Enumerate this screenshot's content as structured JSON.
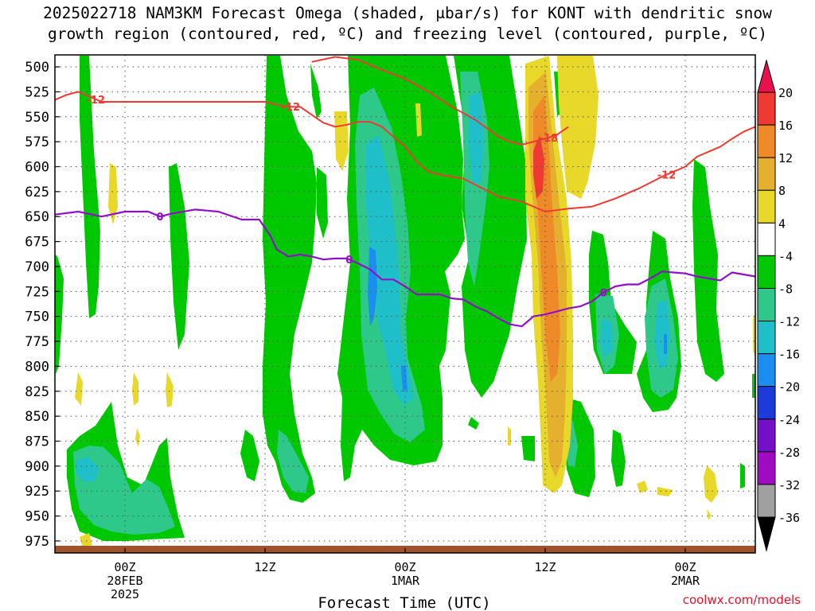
{
  "title_line1": "2025022718 NAM3KM Forecast Omega (shaded, μbar/s) for KONT with dendritic snow",
  "title_line2": "growth region (contoured, red, ºC) and freezing level (contoured, purple, ºC)",
  "credit": "coolwx.com/models",
  "chart_data": {
    "type": "heatmap",
    "title": "2025022718 NAM3KM Forecast Omega (shaded, μbar/s) for KONT with dendritic snow growth region (contoured, red, ºC) and freezing level (contoured, purple, ºC)",
    "xlabel": "Forecast Time (UTC)",
    "ylabel": "",
    "x_range_hours": [
      0,
      60
    ],
    "ylim": [
      987,
      488
    ],
    "y_ticks": [
      500,
      525,
      550,
      575,
      600,
      625,
      650,
      675,
      700,
      725,
      750,
      775,
      800,
      825,
      850,
      875,
      900,
      925,
      950,
      975
    ],
    "x_ticks": [
      {
        "hour": 6,
        "lines": [
          "00Z",
          "28FEB",
          "2025"
        ]
      },
      {
        "hour": 18,
        "lines": [
          "12Z"
        ]
      },
      {
        "hour": 30,
        "lines": [
          "00Z",
          "1MAR"
        ]
      },
      {
        "hour": 42,
        "lines": [
          "12Z"
        ]
      },
      {
        "hour": 54,
        "lines": [
          "00Z",
          "2MAR"
        ]
      }
    ],
    "grid": true,
    "colorbar": {
      "labels": [
        "20",
        "16",
        "12",
        "8",
        "4",
        "-4",
        "-8",
        "-12",
        "-16",
        "-20",
        "-24",
        "-28",
        "-32",
        "-36"
      ],
      "colors": [
        "#e8114e",
        "#ee3a32",
        "#ef8a28",
        "#e4b02e",
        "#e8d82a",
        "#ffffff",
        "#00c800",
        "#2ec98a",
        "#1fbfca",
        "#1a8ff0",
        "#1c3bd8",
        "#7410c8",
        "#a00ac0",
        "#a0a0a0",
        "#000000"
      ]
    },
    "contour_labels": {
      "dgz_red": [
        "-12",
        "-12",
        "-18",
        "-12"
      ],
      "freezing_purple": [
        "0",
        "0",
        "0"
      ]
    },
    "freezing_level": {
      "hours": [
        0,
        2,
        4,
        6,
        8,
        9,
        10,
        12,
        14,
        16,
        17.5,
        18.5,
        19,
        20,
        21,
        22,
        23,
        24,
        25,
        26,
        27,
        28,
        29,
        30,
        31,
        32,
        33,
        34,
        35,
        36,
        37,
        38,
        39,
        40,
        41,
        42,
        43,
        44,
        45,
        46,
        47,
        48,
        49,
        50,
        51,
        52,
        53,
        54,
        55,
        56,
        57,
        58,
        59,
        60
      ],
      "pressure": [
        648,
        645,
        650,
        645,
        645,
        650,
        647,
        643,
        645,
        653,
        653,
        670,
        683,
        690,
        688,
        690,
        693,
        692,
        692,
        697,
        703,
        713,
        713,
        720,
        728,
        728,
        728,
        732,
        733,
        740,
        745,
        752,
        758,
        760,
        750,
        748,
        745,
        742,
        740,
        735,
        726,
        720,
        718,
        718,
        712,
        705,
        706,
        707,
        710,
        712,
        714,
        706,
        708,
        710
      ]
    },
    "dgz_minus12_upper": {
      "hours": [
        0,
        1,
        2,
        3,
        4,
        6,
        8,
        10,
        12,
        14,
        16,
        18,
        19,
        20,
        21,
        22,
        23,
        24,
        25,
        26,
        27,
        28,
        29,
        30,
        31,
        32,
        33,
        34,
        35,
        36
      ],
      "pressure": [
        533,
        528,
        525,
        530,
        535,
        535,
        535,
        535,
        535,
        535,
        535,
        535,
        538,
        540,
        540,
        548,
        556,
        560,
        558,
        555,
        555,
        560,
        570,
        580,
        595,
        605,
        608,
        610,
        612,
        618
      ]
    },
    "dgz_minus18": {
      "hours": [
        22,
        24,
        26,
        28,
        30,
        32,
        34,
        36,
        38,
        39,
        40,
        41,
        42,
        43,
        44
      ],
      "pressure": [
        495,
        490,
        493,
        503,
        512,
        525,
        540,
        553,
        570,
        575,
        578,
        575,
        572,
        568,
        560
      ]
    },
    "dgz_minus12_lower": {
      "hours": [
        36,
        38,
        40,
        42,
        44,
        46,
        48,
        50,
        52,
        54,
        55,
        56,
        57,
        58,
        59,
        60
      ],
      "pressure": [
        618,
        630,
        635,
        645,
        642,
        640,
        632,
        622,
        610,
        600,
        590,
        585,
        580,
        572,
        565,
        560
      ]
    }
  }
}
